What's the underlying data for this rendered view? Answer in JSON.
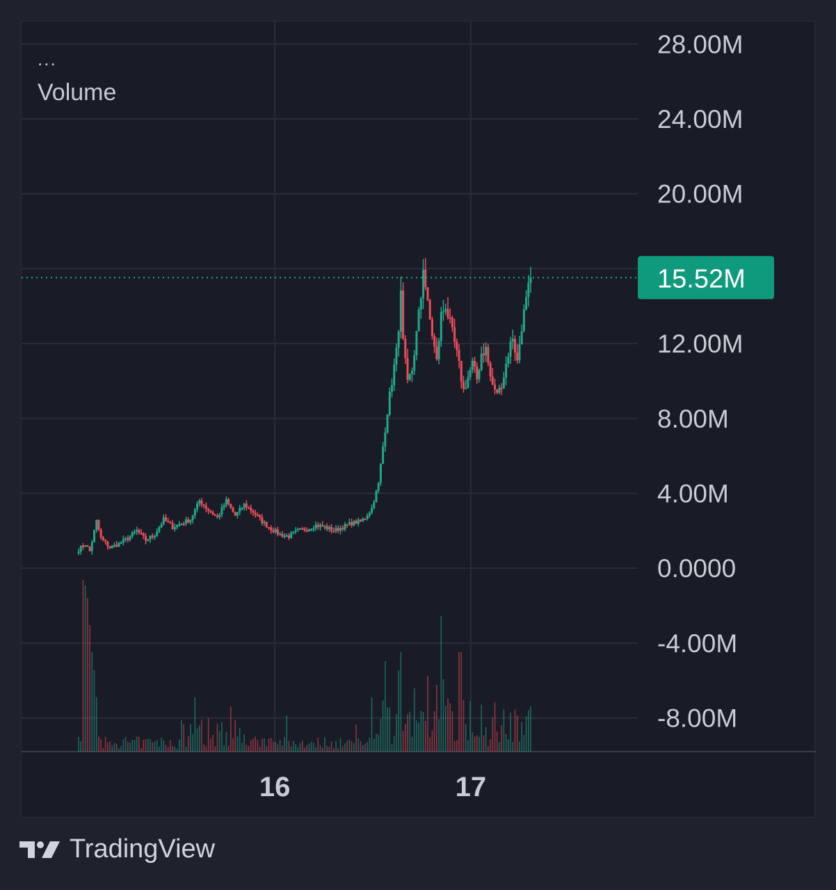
{
  "legend": {
    "dots": "...",
    "title": "Volume"
  },
  "brand": {
    "name": "TradingView",
    "icon": "tradingview-logo-icon"
  },
  "colors": {
    "up": "#22a88a",
    "down": "#ef4d5b",
    "grid": "#2a2d39",
    "axis_text": "#c9ccd4",
    "price_badge": "#0f9a7e",
    "background": "#191b26"
  },
  "chart_data": {
    "type": "candlestick",
    "title": "Volume",
    "ylim": [
      -9800000,
      29200000
    ],
    "yticks": [
      28000000,
      24000000,
      20000000,
      16000000,
      12000000,
      8000000,
      4000000,
      0,
      -4000000,
      -8000000
    ],
    "ytick_labels": [
      "28.00M",
      "24.00M",
      "20.00M",
      "",
      "12.00M",
      "8.00M",
      "4.00M",
      "0.0000",
      "-4.00M",
      "-8.00M"
    ],
    "x_ticks": [
      {
        "label": "16",
        "pos": 0.411
      },
      {
        "label": "17",
        "pos": 0.729
      }
    ],
    "last_value": 15520000,
    "last_value_label": "15.52M",
    "grid": true,
    "legend_position": "top-left",
    "keypoints": [
      [
        0,
        1.0
      ],
      [
        3,
        1.3
      ],
      [
        5,
        0.9
      ],
      [
        8,
        2.5
      ],
      [
        10,
        1.6
      ],
      [
        14,
        1.1
      ],
      [
        18,
        1.3
      ],
      [
        22,
        1.6
      ],
      [
        26,
        2.0
      ],
      [
        30,
        1.5
      ],
      [
        34,
        1.8
      ],
      [
        38,
        2.6
      ],
      [
        42,
        2.2
      ],
      [
        46,
        2.4
      ],
      [
        50,
        2.6
      ],
      [
        54,
        3.6
      ],
      [
        58,
        3.1
      ],
      [
        62,
        2.7
      ],
      [
        66,
        3.6
      ],
      [
        70,
        2.8
      ],
      [
        74,
        3.4
      ],
      [
        78,
        3.0
      ],
      [
        82,
        2.5
      ],
      [
        86,
        2.1
      ],
      [
        90,
        1.8
      ],
      [
        94,
        1.7
      ],
      [
        98,
        2.0
      ],
      [
        102,
        2.1
      ],
      [
        106,
        2.3
      ],
      [
        110,
        2.2
      ],
      [
        114,
        2.0
      ],
      [
        118,
        2.2
      ],
      [
        122,
        2.4
      ],
      [
        126,
        2.5
      ],
      [
        128,
        2.7
      ],
      [
        131,
        3.2
      ],
      [
        134,
        4.5
      ],
      [
        136,
        6.5
      ],
      [
        138,
        8.4
      ],
      [
        140,
        10.0
      ],
      [
        142,
        11.5
      ],
      [
        143,
        13.0
      ],
      [
        144,
        14.5
      ],
      [
        145,
        12.0
      ],
      [
        147,
        9.8
      ],
      [
        149,
        10.6
      ],
      [
        151,
        12.5
      ],
      [
        153,
        14.5
      ],
      [
        154,
        16.2
      ],
      [
        156,
        14.0
      ],
      [
        158,
        12.5
      ],
      [
        160,
        11.0
      ],
      [
        162,
        13.5
      ],
      [
        164,
        14.1
      ],
      [
        166,
        13.0
      ],
      [
        168,
        12.0
      ],
      [
        170,
        10.8
      ],
      [
        172,
        9.5
      ],
      [
        174,
        10.2
      ],
      [
        176,
        10.9
      ],
      [
        178,
        10.1
      ],
      [
        180,
        11.5
      ],
      [
        182,
        11.7
      ],
      [
        184,
        10.2
      ],
      [
        186,
        9.4
      ],
      [
        188,
        9.5
      ],
      [
        190,
        10.3
      ],
      [
        192,
        11.5
      ],
      [
        194,
        12.4
      ],
      [
        196,
        11.0
      ],
      [
        198,
        13.0
      ],
      [
        200,
        14.2
      ],
      [
        202,
        15.52
      ]
    ],
    "volume_spikes": [
      [
        2,
        0.95
      ],
      [
        3,
        0.92
      ],
      [
        4,
        0.85
      ],
      [
        5,
        0.7
      ],
      [
        6,
        0.55
      ],
      [
        7,
        0.45
      ],
      [
        8,
        0.3
      ],
      [
        52,
        0.3
      ],
      [
        68,
        0.25
      ],
      [
        93,
        0.2
      ],
      [
        124,
        0.15
      ],
      [
        137,
        0.5
      ],
      [
        143,
        0.45
      ],
      [
        144,
        0.55
      ],
      [
        150,
        0.35
      ],
      [
        156,
        0.42
      ],
      [
        160,
        0.37
      ],
      [
        162,
        0.75
      ],
      [
        163,
        0.4
      ],
      [
        170,
        0.55
      ],
      [
        171,
        0.55
      ],
      [
        175,
        0.28
      ],
      [
        180,
        0.26
      ],
      [
        196,
        0.2
      ]
    ]
  }
}
